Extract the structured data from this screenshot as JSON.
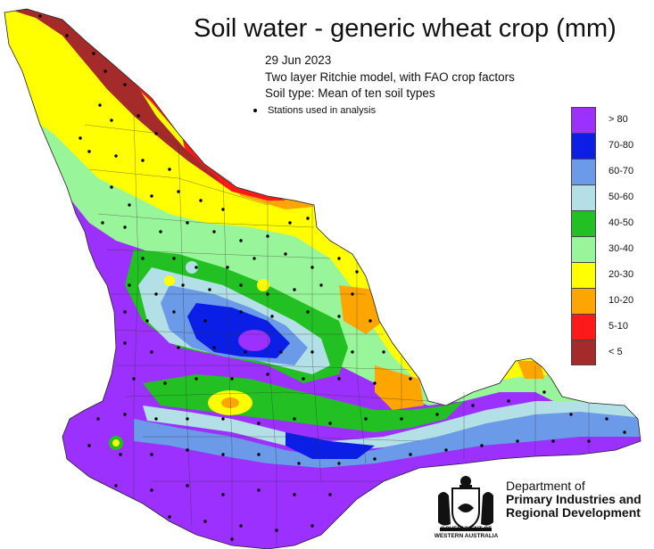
{
  "title": "Soil water - generic wheat crop (mm)",
  "date": "29 Jun 2023",
  "model": "Two layer Ritchie model, with FAO crop factors",
  "soil_type": "Soil type: Mean of ten soil types",
  "stations_note": "Stations used in analysis",
  "legend": [
    {
      "label": "> 80",
      "color": "#9b30ff"
    },
    {
      "label": "70-80",
      "color": "#0a1ee6"
    },
    {
      "label": "60-70",
      "color": "#6a9ae8"
    },
    {
      "label": "50-60",
      "color": "#b2e0e6"
    },
    {
      "label": "40-50",
      "color": "#22c022"
    },
    {
      "label": "30-40",
      "color": "#99f599"
    },
    {
      "label": "20-30",
      "color": "#ffff00"
    },
    {
      "label": "10-20",
      "color": "#ffa500"
    },
    {
      "label": "5-10",
      "color": "#ff1a1a"
    },
    {
      "label": "< 5",
      "color": "#a52a2a"
    }
  ],
  "org": {
    "line1": "Department of",
    "line2": "Primary Industries and",
    "line3": "Regional Development",
    "crest_caption_1": "GOVERNMENT OF",
    "crest_caption_2": "WESTERN AUSTRALIA"
  }
}
